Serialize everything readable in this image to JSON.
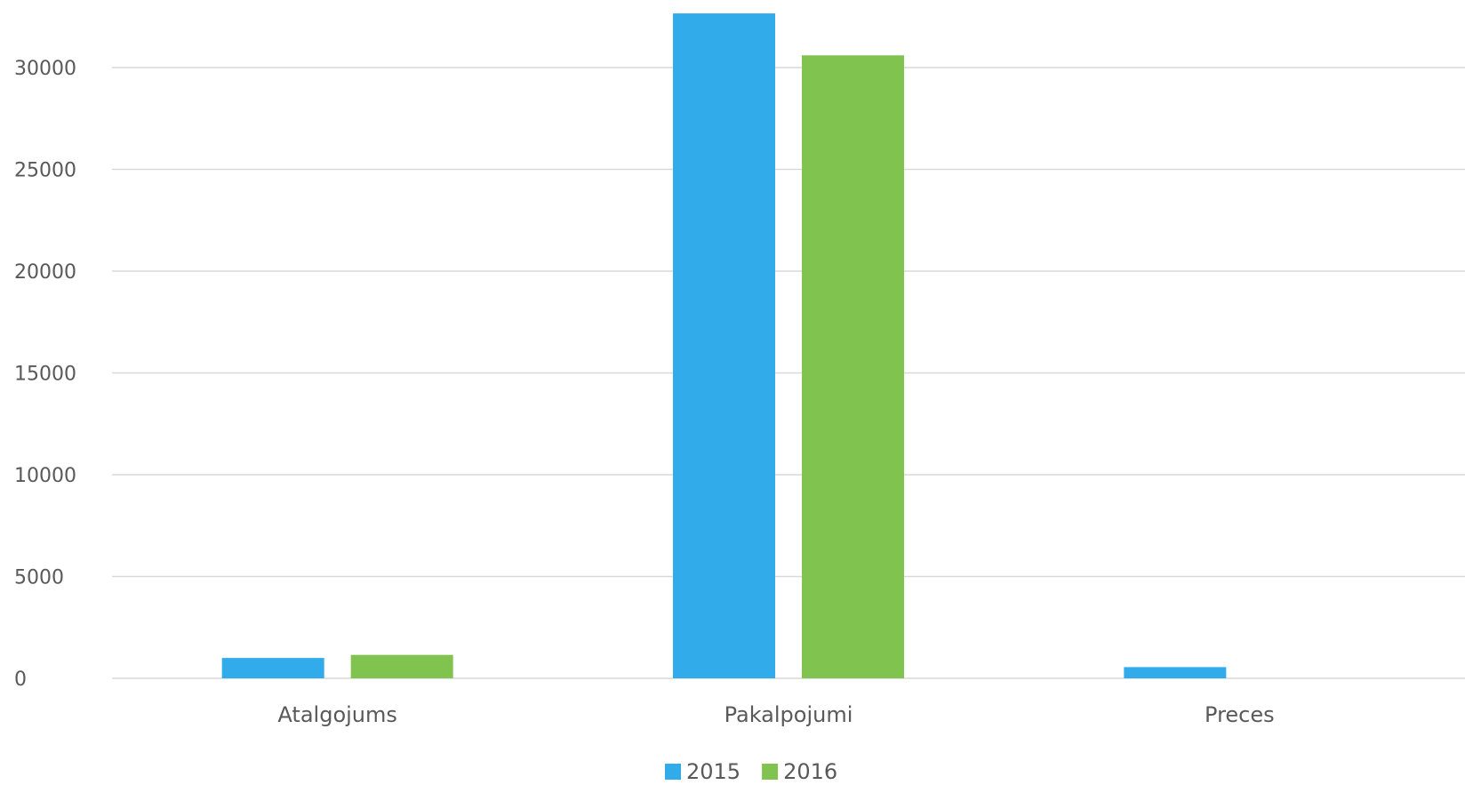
{
  "chart_data": {
    "type": "bar",
    "categories": [
      "Atalgojums",
      "Pakalpojumi",
      "Preces"
    ],
    "series": [
      {
        "name": "2015",
        "color": "#31abea",
        "values": [
          1000,
          32660,
          550
        ]
      },
      {
        "name": "2016",
        "color": "#81c34f",
        "values": [
          1150,
          30600,
          0
        ]
      }
    ],
    "ylim": [
      0,
      33000
    ],
    "yticks": [
      0,
      5000,
      10000,
      15000,
      20000,
      25000,
      30000
    ],
    "grid": true
  }
}
